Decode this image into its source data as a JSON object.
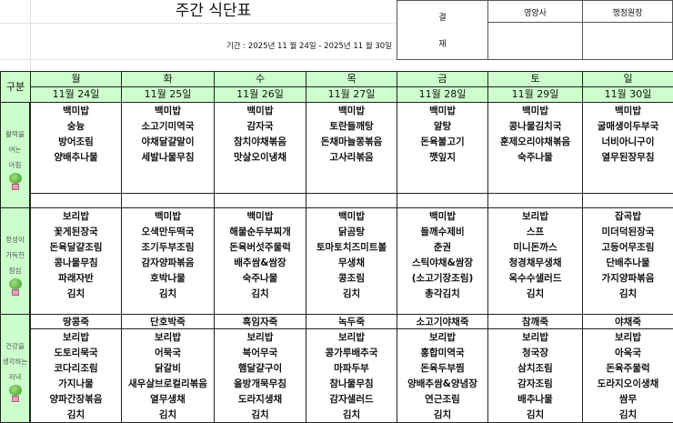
{
  "title": "주간 식단표",
  "period": "기간 : 2025년  11 월 24일 - 2025년  11 월 30일",
  "approval": {
    "label_top": "결",
    "label_bottom": "재",
    "roles": [
      "영양사",
      "행정원장"
    ]
  },
  "header": {
    "category": "구분",
    "days": [
      "월",
      "화",
      "수",
      "목",
      "금",
      "토",
      "일"
    ],
    "dates": [
      "11월 24일",
      "11월 25일",
      "11월 26일",
      "11월 27일",
      "11월 28일",
      "11월 29일",
      "11월 30일"
    ]
  },
  "meals": {
    "breakfast": {
      "label": [
        "활력을",
        "여는",
        "아침"
      ],
      "menus": [
        [
          "백미밥",
          "숭늉",
          "방어조림",
          "양배추나물",
          "",
          "김치"
        ],
        [
          "백미밥",
          "소고기미역국",
          "야채달걀말이",
          "세발나물무침",
          "",
          "김치"
        ],
        [
          "백미밥",
          "감자국",
          "참치야채볶음",
          "맛살오이냉채",
          "",
          "김치"
        ],
        [
          "백미밥",
          "토란들깨탕",
          "돈채마늘쫑볶음",
          "고사리볶음",
          "",
          "김치"
        ],
        [
          "백미밥",
          "알탕",
          "돈육불고기",
          "깻잎지",
          "",
          "김치"
        ],
        [
          "백미밥",
          "콩나물김치국",
          "훈제오리야채볶음",
          "숙주나물",
          "",
          "김치"
        ],
        [
          "백미밥",
          "굴매생이두부국",
          "너비아니구이",
          "열무된장무침",
          "",
          "김치"
        ]
      ]
    },
    "lunch": {
      "label": [
        "정성이",
        "가득한",
        "점심"
      ],
      "menus": [
        [
          "보리밥",
          "꽃게된장국",
          "돈육달걀조림",
          "콩나물무침",
          "파래자반",
          "김치"
        ],
        [
          "백미밥",
          "오색만두떡국",
          "조기두부조림",
          "감자양파볶음",
          "호박나물",
          "김치"
        ],
        [
          "백미밥",
          "해물순두부찌개",
          "돈육버섯주물럭",
          "배추쌈&쌈장",
          "숙주나물",
          "김치"
        ],
        [
          "백미밥",
          "닭곰탕",
          "토마토치즈미트볼",
          "무생채",
          "콩조림",
          "김치"
        ],
        [
          "백미밥",
          "들깨수제비",
          "춘권",
          "스틱야채&쌈장",
          "(소고기장조림)",
          "총각김치"
        ],
        [
          "보리밥",
          "스프",
          "미니돈까스",
          "청경채무생채",
          "옥수수샐러드",
          "김치"
        ],
        [
          "잡곡밥",
          "미더덕된장국",
          "고등어무조림",
          "단배추나물",
          "가지양파볶음",
          "김치"
        ]
      ]
    },
    "snack": [
      "땅콩죽",
      "단호박죽",
      "흑임자죽",
      "녹두죽",
      "소고기야채죽",
      "참깨죽",
      "야채죽"
    ],
    "dinner": {
      "label": [
        "건강을",
        "생각하는",
        "저녁"
      ],
      "menus": [
        [
          "보리밥",
          "도토리묵국",
          "코다리조림",
          "가지나물",
          "양파간장볶음",
          "김치"
        ],
        [
          "보리밥",
          "어묵국",
          "닭갈비",
          "새우살브로컬리볶음",
          "열무생채",
          "김치"
        ],
        [
          "보리밥",
          "북어무국",
          "햄달걀구이",
          "올방개묵무침",
          "도라지생채",
          "김치"
        ],
        [
          "보리밥",
          "콩가루배추국",
          "마파두부",
          "참나물무침",
          "감자샐러드",
          "김치"
        ],
        [
          "보리밥",
          "홍합미역국",
          "돈육두부찜",
          "양배추쌈&양념장",
          "연근조림",
          "김치"
        ],
        [
          "보리밥",
          "청국장",
          "삼치조림",
          "감자조림",
          "배추나물",
          "김치"
        ],
        [
          "보리밥",
          "아욱국",
          "돈육주물럭",
          "도라지오이생채",
          "쌈무",
          "김치"
        ]
      ]
    }
  },
  "colors": {
    "header_bg": "#ccffcc",
    "label_text": "#555555"
  }
}
